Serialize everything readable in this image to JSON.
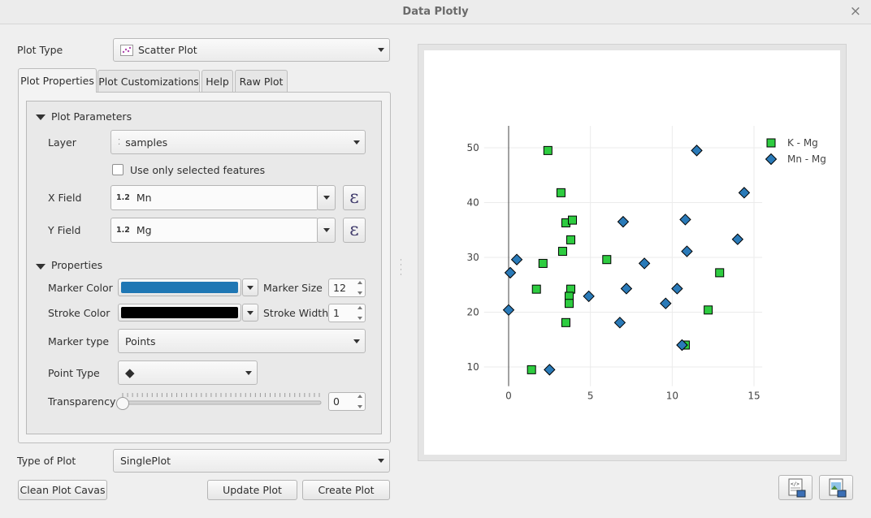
{
  "window": {
    "title": "Data Plotly",
    "close_glyph": "×"
  },
  "plot_type": {
    "label": "Plot Type",
    "value": "Scatter Plot",
    "icon": "scatter-plot-icon"
  },
  "tabs": [
    {
      "label": "Plot Properties",
      "active": true
    },
    {
      "label": "Plot Customizations",
      "active": false
    },
    {
      "label": "Help",
      "active": false
    },
    {
      "label": "Raw Plot",
      "active": false
    }
  ],
  "plot_parameters": {
    "header": "Plot Parameters",
    "layer_label": "Layer",
    "layer_value": "samples",
    "selected_only_label": "Use only selected features",
    "selected_only_checked": false,
    "x_field_label": "X Field",
    "x_field_prefix": "1.2",
    "x_field_value": "Mn",
    "y_field_label": "Y Field",
    "y_field_prefix": "1.2",
    "y_field_value": "Mg",
    "expression_glyph": "ε"
  },
  "properties": {
    "header": "Properties",
    "marker_color_label": "Marker Color",
    "marker_color": "#1f77b4",
    "marker_size_label": "Marker Size",
    "marker_size": "12",
    "stroke_color_label": "Stroke Color",
    "stroke_color": "#000000",
    "stroke_width_label": "Stroke Width",
    "stroke_width": "1",
    "marker_type_label": "Marker type",
    "marker_type": "Points",
    "point_type_label": "Point Type",
    "point_type_glyph": "◆",
    "transparency_label": "Transparency",
    "transparency_value": "0",
    "transparency_fraction": 0
  },
  "type_of_plot": {
    "label": "Type of Plot",
    "value": "SinglePlot"
  },
  "buttons": {
    "clean": "Clean Plot Cavas",
    "update": "Update Plot",
    "create": "Create Plot"
  },
  "chart_data": {
    "type": "scatter",
    "xlim": [
      -1.5,
      15.5
    ],
    "ylim": [
      6.5,
      54
    ],
    "xticks": [
      0,
      5,
      10,
      15
    ],
    "yticks": [
      10,
      20,
      30,
      40,
      50
    ],
    "grid": true,
    "legend_position": "top-right",
    "series": [
      {
        "name": "K - Mg",
        "marker": "square",
        "color": "#2ecc40",
        "points": [
          [
            2.4,
            49.5
          ],
          [
            3.2,
            41.8
          ],
          [
            3.5,
            36.3
          ],
          [
            3.9,
            36.8
          ],
          [
            3.8,
            33.2
          ],
          [
            3.3,
            31.1
          ],
          [
            2.1,
            28.9
          ],
          [
            6.0,
            29.6
          ],
          [
            1.7,
            24.2
          ],
          [
            3.8,
            24.2
          ],
          [
            3.7,
            22.9
          ],
          [
            3.7,
            21.6
          ],
          [
            3.5,
            18.1
          ],
          [
            1.4,
            9.5
          ],
          [
            10.8,
            14.0
          ],
          [
            12.2,
            20.4
          ],
          [
            12.9,
            27.2
          ]
        ]
      },
      {
        "name": "Mn - Mg",
        "marker": "diamond",
        "color": "#2a7ab8",
        "points": [
          [
            0.5,
            29.6
          ],
          [
            0.1,
            27.2
          ],
          [
            0.0,
            20.4
          ],
          [
            2.5,
            9.5
          ],
          [
            4.9,
            22.9
          ],
          [
            6.8,
            18.1
          ],
          [
            7.0,
            36.5
          ],
          [
            7.2,
            24.3
          ],
          [
            8.3,
            28.9
          ],
          [
            9.6,
            21.6
          ],
          [
            10.3,
            24.3
          ],
          [
            10.6,
            14.0
          ],
          [
            10.8,
            36.9
          ],
          [
            10.9,
            31.1
          ],
          [
            11.5,
            49.5
          ],
          [
            14.0,
            33.3
          ],
          [
            14.4,
            41.8
          ]
        ]
      }
    ]
  },
  "footer_icons": [
    "export-html-icon",
    "export-image-icon"
  ]
}
